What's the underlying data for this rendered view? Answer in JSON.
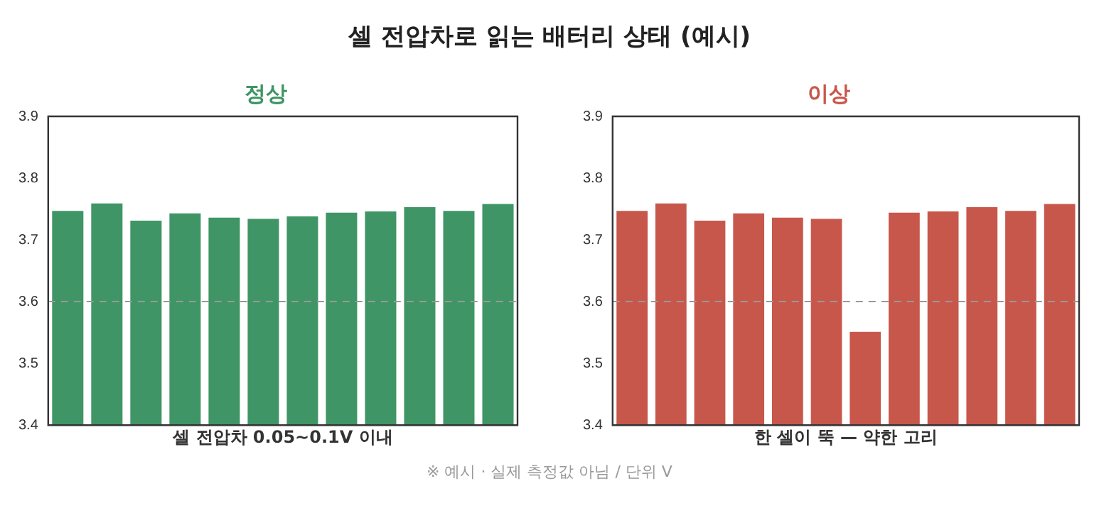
{
  "chart_data": [
    {
      "type": "bar",
      "title": "정상",
      "xlabel": "셀 전압차 0.05~0.1V 이내",
      "annotations": [
        "셀 전압차로 읽는 배터리 상태 (예시)",
        "※ 예시 · 실제 측정값 아님 / 단위 V"
      ],
      "categories": [
        null,
        null,
        null,
        null,
        null,
        null,
        null,
        null,
        null,
        null,
        null,
        null
      ],
      "series": [
        {
          "color": "#3f9565",
          "values": [
            3.747,
            3.759,
            3.731,
            3.743,
            3.736,
            3.734,
            3.738,
            3.744,
            3.746,
            3.753,
            3.747,
            3.758
          ]
        }
      ],
      "ylim": [
        3.4,
        3.9
      ],
      "yticks": [
        3.4,
        3.5,
        3.6,
        3.7,
        3.8,
        3.9
      ],
      "tick_labels": "y",
      "ref_lines": [
        {
          "axis": "y",
          "value": 3.6,
          "color": "#999999",
          "line_style": "dashed"
        }
      ]
    },
    {
      "type": "bar",
      "title": "이상",
      "xlabel": "한 셀이 뚝 — 약한 고리",
      "categories": [
        null,
        null,
        null,
        null,
        null,
        null,
        null,
        null,
        null,
        null,
        null,
        null
      ],
      "series": [
        {
          "color": "#c8574b",
          "values": [
            3.747,
            3.759,
            3.731,
            3.743,
            3.736,
            3.734,
            3.551,
            3.744,
            3.746,
            3.753,
            3.747,
            3.758
          ]
        }
      ],
      "ylim": [
        3.4,
        3.9
      ],
      "yticks": [
        3.4,
        3.5,
        3.6,
        3.7,
        3.8,
        3.9
      ],
      "tick_labels": "y",
      "ref_lines": [
        {
          "axis": "y",
          "value": 3.6,
          "color": "#999999",
          "line_style": "dashed"
        }
      ]
    }
  ]
}
